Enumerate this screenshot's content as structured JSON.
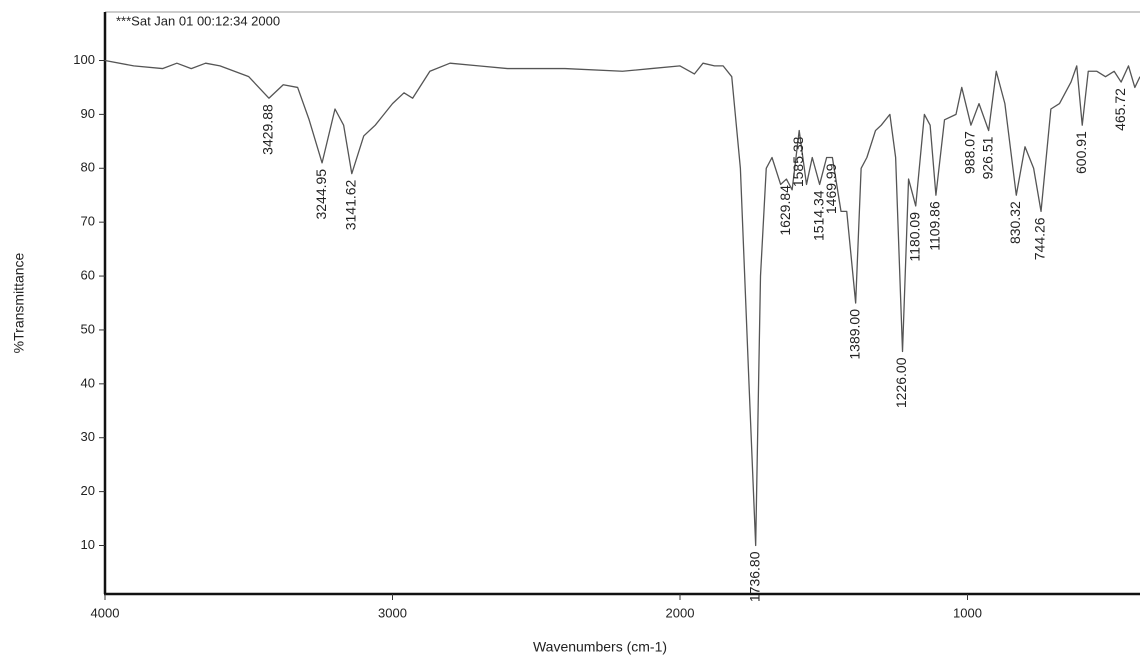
{
  "chart_data": {
    "type": "line",
    "title": "***Sat Jan 01 00:12:34 2000",
    "x_label": "Wavenumbers (cm-1)",
    "y_label": "%Transmittance",
    "xlim": [
      4000,
      400
    ],
    "ylim": [
      1,
      109
    ],
    "xticks": [
      4000,
      3000,
      2000,
      1000
    ],
    "yticks": [
      10,
      20,
      30,
      40,
      50,
      60,
      70,
      80,
      90,
      100
    ],
    "color": "#555555",
    "x": [
      4000,
      3900,
      3800,
      3750,
      3700,
      3650,
      3600,
      3500,
      3429.88,
      3380,
      3330,
      3290,
      3244.95,
      3200,
      3170,
      3141.62,
      3100,
      3060,
      3000,
      2960,
      2930,
      2870,
      2800,
      2700,
      2600,
      2400,
      2200,
      2100,
      2000,
      1950,
      1920,
      1880,
      1850,
      1820,
      1790,
      1760,
      1736.8,
      1720,
      1700,
      1680,
      1650,
      1629.84,
      1610,
      1585.38,
      1560,
      1540,
      1514.34,
      1490,
      1469.99,
      1440,
      1420,
      1389,
      1370,
      1350,
      1320,
      1300,
      1270,
      1250,
      1226,
      1205,
      1190,
      1180.09,
      1150,
      1130,
      1109.86,
      1080,
      1040,
      1020,
      988.07,
      960,
      926.51,
      900,
      870,
      830.32,
      800,
      770,
      744.26,
      710,
      680,
      640,
      620,
      600.91,
      580,
      550,
      520,
      490,
      465.72,
      440,
      418,
      400
    ],
    "values": [
      100,
      99,
      98.5,
      99.5,
      98.5,
      99.5,
      99,
      97,
      93,
      95.5,
      95,
      89,
      81,
      91,
      88,
      79,
      86,
      88,
      92,
      94,
      93,
      98,
      99.5,
      99,
      98.5,
      98.5,
      98,
      98.5,
      99,
      97.5,
      99.5,
      99,
      99,
      97,
      80,
      40,
      10,
      60,
      80,
      82,
      77,
      78,
      76,
      87,
      77,
      82,
      77,
      82,
      82,
      72,
      72,
      55,
      80,
      82,
      87,
      88,
      90,
      82,
      46,
      78,
      75,
      73,
      90,
      88,
      75,
      89,
      90,
      95,
      88,
      92,
      87,
      98,
      92,
      75,
      84,
      80,
      72,
      91,
      92,
      96,
      99,
      88,
      98,
      98,
      97,
      98,
      96,
      99,
      95,
      97
    ],
    "peaks": [
      {
        "value": 3429.88,
        "label": "3429.88"
      },
      {
        "value": 3244.95,
        "label": "3244.95"
      },
      {
        "value": 3141.62,
        "label": "3141.62"
      },
      {
        "value": 1736.8,
        "label": "1736.80"
      },
      {
        "value": 1629.84,
        "label": "1629.84"
      },
      {
        "value": 1585.38,
        "label": "1585.38"
      },
      {
        "value": 1514.34,
        "label": "1514.34"
      },
      {
        "value": 1469.99,
        "label": "1469.99"
      },
      {
        "value": 1389,
        "label": "1389.00"
      },
      {
        "value": 1226,
        "label": "1226.00"
      },
      {
        "value": 1180.09,
        "label": "1180.09"
      },
      {
        "value": 1109.86,
        "label": "1109.86"
      },
      {
        "value": 988.07,
        "label": "988.07"
      },
      {
        "value": 926.51,
        "label": "926.51"
      },
      {
        "value": 830.32,
        "label": "830.32"
      },
      {
        "value": 744.26,
        "label": "744.26"
      },
      {
        "value": 600.91,
        "label": "600.91"
      },
      {
        "value": 465.72,
        "label": "465.72"
      }
    ]
  }
}
